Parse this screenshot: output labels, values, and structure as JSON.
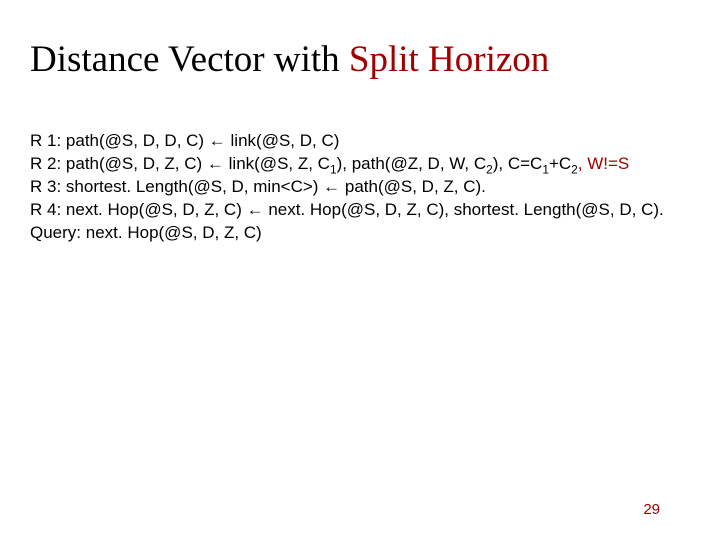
{
  "colors": {
    "accent": "#a00000",
    "text": "#000000",
    "background": "#ffffff"
  },
  "typography": {
    "title_font": "Times New Roman",
    "title_size_pt": 37,
    "body_font": "Verdana",
    "body_size_pt": 17
  },
  "title": {
    "part1": "Distance Vector with ",
    "part2": "Split Horizon"
  },
  "rules": {
    "r1": {
      "label": "R 1:",
      "text": " path(@S, D, D, C) ← link(@S, D, C)"
    },
    "r2": {
      "label": "R 2:",
      "pre": " path(@S, D, Z, C) ← link(@S, Z, C",
      "sub1": "1",
      "mid1": "), path(@Z, D, W, C",
      "sub2": "2",
      "mid2": "), C=C",
      "sub3": "1",
      "mid3": "+C",
      "sub4": "2",
      "comma": ", ",
      "addendum": "W!=S"
    },
    "r3": {
      "label": "R 3:",
      "text": " shortest. Length(@S, D, min<C>) ← path(@S, D, Z, C)."
    },
    "r4": {
      "label": "R 4:",
      "text": " next. Hop(@S, D, Z, C) ← next. Hop(@S, D, Z, C), shortest. Length(@S, D, C)."
    },
    "query": {
      "label": "Query:",
      "text": " next. Hop(@S, D, Z, C)"
    }
  },
  "page_number": "29"
}
